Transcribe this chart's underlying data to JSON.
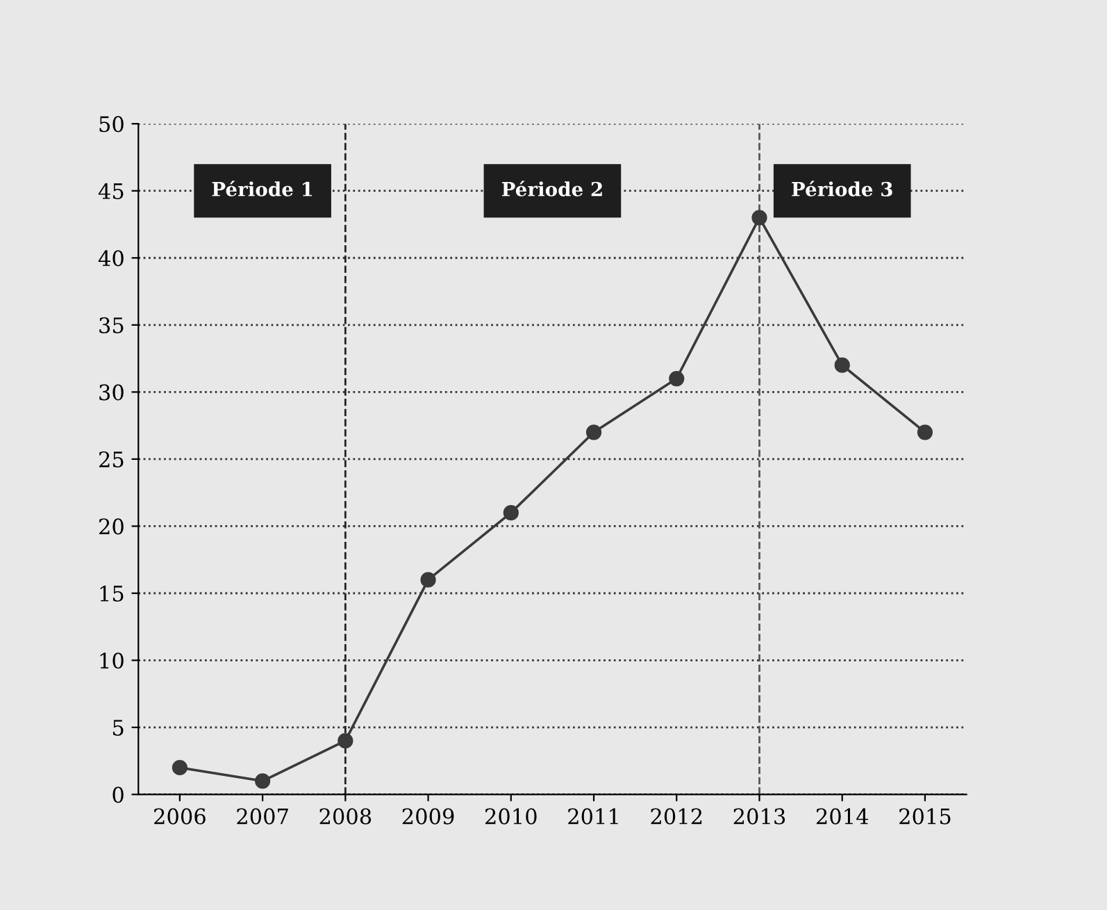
{
  "chart_data": {
    "type": "line",
    "categories": [
      "2006",
      "2007",
      "2008",
      "2009",
      "2010",
      "2011",
      "2012",
      "2013",
      "2014",
      "2015"
    ],
    "series": [
      {
        "color": "#3a3a3a",
        "values": [
          2,
          1,
          4,
          16,
          21,
          27,
          31,
          43,
          32,
          27
        ]
      }
    ],
    "ylim": [
      0,
      50
    ],
    "yticks": [
      0,
      5,
      10,
      15,
      20,
      25,
      30,
      35,
      40,
      45,
      50
    ],
    "grid": "y",
    "marker": "circle",
    "line_style": "solid",
    "legend": false,
    "ref_lines": [
      {
        "axis": "x",
        "value": "2008",
        "line_style": "dashed",
        "color": "#222222"
      },
      {
        "axis": "x",
        "value": "2013",
        "line_style": "dashed",
        "color": "#555555"
      }
    ],
    "annotations": [
      "Période 1",
      "Période 2",
      "Période 3"
    ]
  }
}
